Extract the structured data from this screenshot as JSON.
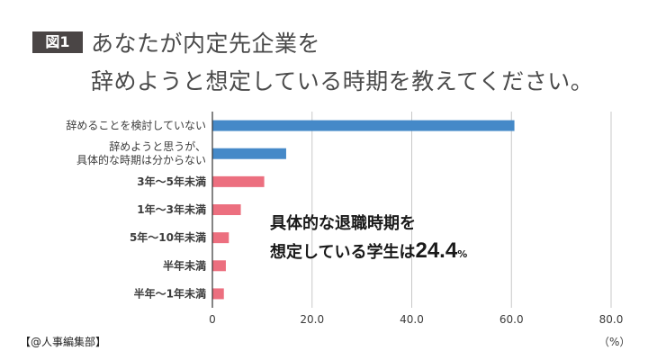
{
  "figure_label": "図1",
  "title_lines": [
    "あなたが内定先企業を",
    "辞めようと想定している時期を教えてください。"
  ],
  "source": "【@人事編集部】",
  "annotation": {
    "text1": "具体的な退職時期を",
    "text2": "想定している学生は",
    "value": "24.4",
    "unit": "%"
  },
  "chart_data": {
    "type": "bar",
    "orientation": "horizontal",
    "categories": [
      [
        "辞めることを検討していない"
      ],
      [
        "辞めようと思うが、",
        "具体的な時期は分からない"
      ],
      [
        "3年〜5年未満"
      ],
      [
        "1年〜3年未満"
      ],
      [
        "5年〜10年未満"
      ],
      [
        "半年未満"
      ],
      [
        "半年〜1年未満"
      ]
    ],
    "values": [
      60.6,
      14.8,
      10.4,
      5.7,
      3.3,
      2.7,
      2.3
    ],
    "bar_colors": [
      "#4589c8",
      "#4589c8",
      "#ec6f7f",
      "#ec6f7f",
      "#ec6f7f",
      "#ec6f7f",
      "#ec6f7f"
    ],
    "bold_categories": [
      false,
      false,
      true,
      true,
      true,
      true,
      true
    ],
    "xlim": [
      0,
      80
    ],
    "xticks": [
      0,
      20,
      40,
      60,
      80
    ],
    "xtick_labels": [
      "0",
      "20.0",
      "40.0",
      "60.0",
      "80.0"
    ],
    "xunit": "（%）",
    "grid": true
  }
}
